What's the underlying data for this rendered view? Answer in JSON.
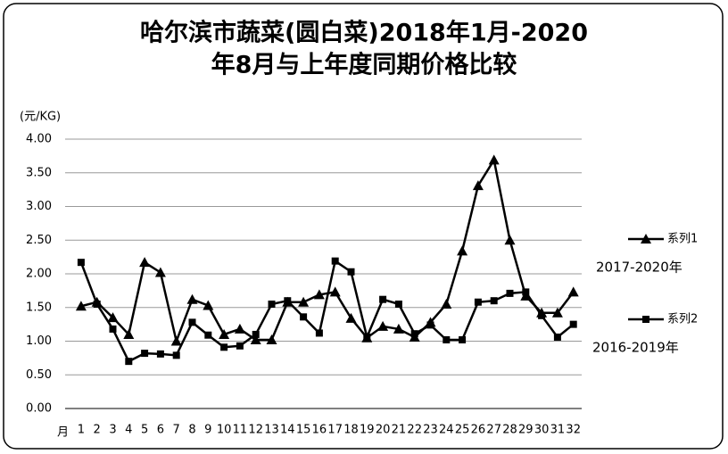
{
  "chart_data": {
    "type": "line",
    "title": [
      "哈尔滨市蔬菜(圆白菜)2018年1月-2020",
      "年8月与上年度同期价格比较"
    ],
    "y_label": "(元/KG)",
    "x_label": "月",
    "categories": [
      "1",
      "2",
      "3",
      "4",
      "5",
      "6",
      "7",
      "8",
      "9",
      "10",
      "11",
      "12",
      "13",
      "14",
      "15",
      "16",
      "17",
      "18",
      "19",
      "20",
      "21",
      "22",
      "23",
      "24",
      "25",
      "26",
      "27",
      "28",
      "29",
      "30",
      "31",
      "32"
    ],
    "series": [
      {
        "name": "系列1",
        "marker": "triangle",
        "color": "#000000",
        "annotation": "2017-2020年",
        "values": [
          1.52,
          1.58,
          1.35,
          1.1,
          2.17,
          2.02,
          1.0,
          1.62,
          1.53,
          1.1,
          1.18,
          1.02,
          1.02,
          1.58,
          1.58,
          1.69,
          1.73,
          1.34,
          1.05,
          1.22,
          1.18,
          1.06,
          1.28,
          1.55,
          2.34,
          3.31,
          3.69,
          2.5,
          1.67,
          1.42,
          1.42,
          1.73
        ]
      },
      {
        "name": "系列2",
        "marker": "square",
        "color": "#000000",
        "annotation": "2016-2019年",
        "values": [
          2.17,
          1.55,
          1.18,
          0.7,
          0.82,
          0.81,
          0.79,
          1.28,
          1.09,
          0.91,
          0.93,
          1.1,
          1.55,
          1.6,
          1.36,
          1.12,
          2.19,
          2.03,
          1.06,
          1.62,
          1.55,
          1.11,
          1.24,
          1.02,
          1.02,
          1.58,
          1.6,
          1.71,
          1.73,
          1.38,
          1.06,
          1.25
        ]
      }
    ],
    "ylim": [
      0,
      4
    ],
    "yticks": [
      {
        "value": 0,
        "label": "0.00"
      },
      {
        "value": 0.5,
        "label": "0.50"
      },
      {
        "value": 1,
        "label": "1.00"
      },
      {
        "value": 1.5,
        "label": "1.50"
      },
      {
        "value": 2,
        "label": "2.00"
      },
      {
        "value": 2.5,
        "label": "2.50"
      },
      {
        "value": 3,
        "label": "3.00"
      },
      {
        "value": 3.5,
        "label": "3.50"
      },
      {
        "value": 4,
        "label": "4.00"
      }
    ],
    "grid": true
  }
}
